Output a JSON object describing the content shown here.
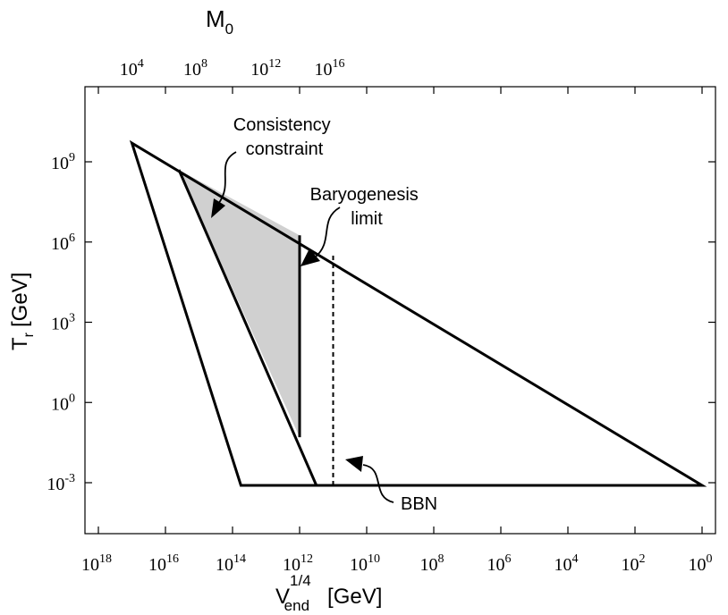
{
  "chart_data": {
    "type": "area",
    "title": "",
    "x_axis": {
      "label_main": "V",
      "label_sup": "1/4",
      "label_sub": "end",
      "label_unit": "[GeV]",
      "scale": "log-reversed",
      "range_log10": [
        18,
        0
      ],
      "ticks": [
        {
          "base": "10",
          "exp": "18",
          "value": 18
        },
        {
          "base": "10",
          "exp": "16",
          "value": 16
        },
        {
          "base": "10",
          "exp": "14",
          "value": 14
        },
        {
          "base": "10",
          "exp": "12",
          "value": 12
        },
        {
          "base": "10",
          "exp": "10",
          "value": 10
        },
        {
          "base": "10",
          "exp": "8",
          "value": 8
        },
        {
          "base": "10",
          "exp": "6",
          "value": 6
        },
        {
          "base": "10",
          "exp": "4",
          "value": 4
        },
        {
          "base": "10",
          "exp": "2",
          "value": 2
        },
        {
          "base": "10",
          "exp": "0",
          "value": 0
        }
      ]
    },
    "top_axis": {
      "label_main": "M",
      "label_sub": "0",
      "ticks": [
        {
          "base": "10",
          "exp": "4",
          "x_log10": 16.9
        },
        {
          "base": "10",
          "exp": "8",
          "x_log10": 15.0
        },
        {
          "base": "10",
          "exp": "12",
          "x_log10": 12.9
        },
        {
          "base": "10",
          "exp": "16",
          "x_log10": 11.0
        }
      ]
    },
    "y_axis": {
      "label_main": "T",
      "label_sub": "r",
      "label_unit": "[GeV]",
      "scale": "log",
      "range_log10": [
        -5.0,
        12.0
      ],
      "ticks": [
        {
          "base": "10",
          "exp": "9",
          "value": 9
        },
        {
          "base": "10",
          "exp": "6",
          "value": 6
        },
        {
          "base": "10",
          "exp": "3",
          "value": 3
        },
        {
          "base": "10",
          "exp": "0",
          "value": 0
        },
        {
          "base": "10",
          "exp": "-3",
          "value": -3
        }
      ]
    },
    "regions": [
      {
        "name": "outer-triangle",
        "fill": "none",
        "points_log10": [
          [
            17.0,
            9.7
          ],
          [
            13.75,
            -3.1
          ],
          [
            0.0,
            -3.1
          ]
        ]
      },
      {
        "name": "inner-left-line",
        "fill": "none",
        "points_log10": [
          [
            15.6,
            8.7
          ],
          [
            11.5,
            -3.1
          ]
        ]
      },
      {
        "name": "allowed-shaded-region",
        "fill": "#d0d0d0",
        "points_log10": [
          [
            15.6,
            8.7
          ],
          [
            12.0,
            6.25
          ],
          [
            12.0,
            -1.3
          ]
        ]
      }
    ],
    "vertical_lines": [
      {
        "name": "baryogenesis-limit",
        "x_log10": 12.0,
        "y_from_log10": -1.3,
        "y_to_log10": 6.25,
        "style": "solid"
      },
      {
        "name": "bbn-limit",
        "x_log10": 11.0,
        "y_from_log10": -3.1,
        "y_to_log10": 5.6,
        "style": "dashed"
      }
    ],
    "annotations": [
      {
        "name": "consistency-constraint",
        "lines": [
          "Consistency",
          "constraint"
        ]
      },
      {
        "name": "baryogenesis-limit",
        "lines": [
          "Baryogenesis",
          "limit"
        ]
      },
      {
        "name": "bbn",
        "lines": [
          "BBN"
        ]
      }
    ],
    "grid": false,
    "colors": {
      "line": "#000000",
      "shade": "#d0d0d0",
      "background": "#ffffff"
    }
  }
}
